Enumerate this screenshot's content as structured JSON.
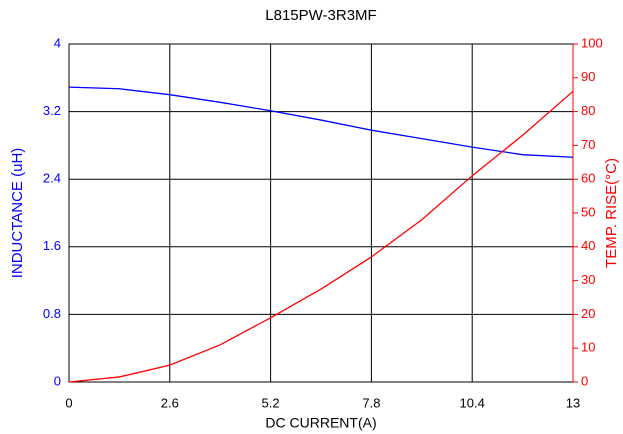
{
  "chart_data": {
    "type": "line",
    "title": "L815PW-3R3MF",
    "x_label": "DC CURRENT(A)",
    "y_label": "INDUCTANCE (uH)",
    "y2_label": "TEMP. RISE(°C)",
    "x": [
      0,
      1.3,
      2.6,
      3.9,
      5.2,
      6.5,
      7.8,
      9.1,
      10.4,
      11.7,
      13
    ],
    "series": [
      {
        "name": "INDUCTANCE",
        "color": "#0000ff",
        "values": [
          3.49,
          3.47,
          3.4,
          3.31,
          3.21,
          3.1,
          2.98,
          2.88,
          2.78,
          2.69,
          2.66
        ]
      },
      {
        "name": "TEMP. RISE",
        "color": "#ff0000",
        "axis": "y2",
        "values": [
          0,
          1.5,
          5,
          11,
          19,
          27.5,
          37,
          48,
          61,
          73,
          86
        ]
      }
    ],
    "xlim": [
      0,
      13
    ],
    "xticks": [
      0,
      2.6,
      5.2,
      7.8,
      10.4,
      13
    ],
    "ylim": [
      0,
      4
    ],
    "yticks": [
      0,
      0.8,
      1.6,
      2.4,
      3.2,
      4
    ],
    "y2lim": [
      0,
      100
    ],
    "y2ticks": [
      0,
      10,
      20,
      30,
      40,
      50,
      60,
      70,
      80,
      90,
      100
    ],
    "grid": true
  }
}
